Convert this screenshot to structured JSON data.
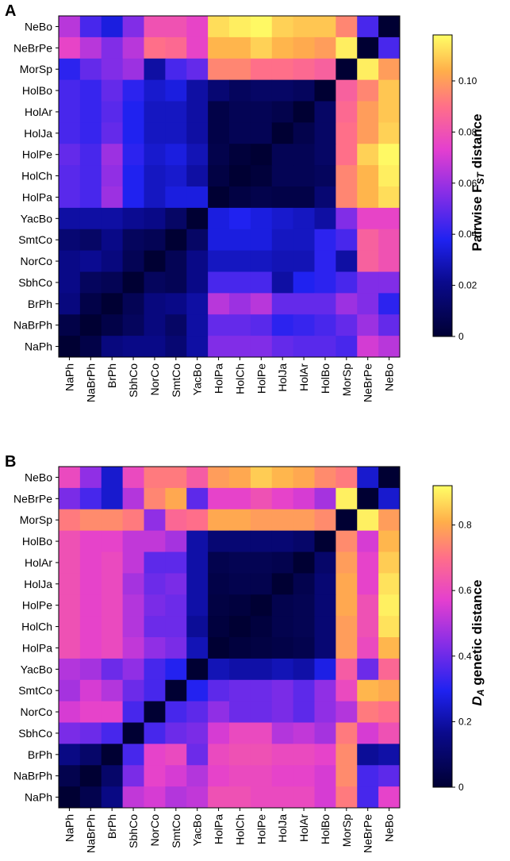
{
  "chart_data": [
    {
      "type": "heatmap",
      "panel": "A",
      "title": "",
      "colorbar_title": "Pairwise F",
      "colorbar_title_sub": "ST",
      "colorbar_title_suffix": " distance",
      "rows": [
        "NeBo",
        "NeBrPe",
        "MorSp",
        "HolBo",
        "HolAr",
        "HolJa",
        "HolPe",
        "HolCh",
        "HolPa",
        "YacBo",
        "SmtCo",
        "NorCo",
        "SbhCo",
        "BrPh",
        "NaBrPh",
        "NaPh"
      ],
      "columns": [
        "NaPh",
        "NaBrPh",
        "BrPh",
        "SbhCo",
        "NorCo",
        "SmtCo",
        "YacBo",
        "HolPa",
        "HolCh",
        "HolPe",
        "HolJa",
        "HolAr",
        "HolBo",
        "MorSp",
        "NeBrPe",
        "NeBo"
      ],
      "values": [
        [
          0.065,
          0.045,
          0.035,
          0.055,
          0.08,
          0.08,
          0.075,
          0.112,
          0.115,
          0.117,
          0.11,
          0.108,
          0.108,
          0.095,
          0.045,
          0.0
        ],
        [
          0.075,
          0.065,
          0.055,
          0.065,
          0.09,
          0.088,
          0.075,
          0.105,
          0.105,
          0.11,
          0.105,
          0.103,
          0.1,
          0.115,
          0.0,
          0.045
        ],
        [
          0.04,
          0.05,
          0.055,
          0.06,
          0.025,
          0.045,
          0.05,
          0.095,
          0.095,
          0.09,
          0.09,
          0.088,
          0.085,
          0.0,
          0.115,
          0.1
        ],
        [
          0.045,
          0.042,
          0.05,
          0.04,
          0.032,
          0.035,
          0.025,
          0.015,
          0.01,
          0.012,
          0.012,
          0.01,
          0.0,
          0.085,
          0.095,
          0.108
        ],
        [
          0.045,
          0.042,
          0.048,
          0.038,
          0.03,
          0.03,
          0.025,
          0.005,
          0.008,
          0.008,
          0.006,
          0.0,
          0.012,
          0.088,
          0.1,
          0.108
        ],
        [
          0.045,
          0.042,
          0.05,
          0.038,
          0.03,
          0.03,
          0.025,
          0.005,
          0.008,
          0.008,
          0.0,
          0.006,
          0.012,
          0.09,
          0.1,
          0.11
        ],
        [
          0.05,
          0.045,
          0.06,
          0.04,
          0.032,
          0.035,
          0.028,
          0.006,
          0.002,
          0.0,
          0.008,
          0.008,
          0.012,
          0.09,
          0.11,
          0.117
        ],
        [
          0.048,
          0.045,
          0.058,
          0.038,
          0.03,
          0.032,
          0.025,
          0.004,
          0.0,
          0.002,
          0.008,
          0.008,
          0.01,
          0.095,
          0.105,
          0.115
        ],
        [
          0.048,
          0.045,
          0.06,
          0.038,
          0.03,
          0.035,
          0.035,
          0.0,
          0.004,
          0.006,
          0.005,
          0.005,
          0.015,
          0.095,
          0.105,
          0.112
        ],
        [
          0.025,
          0.025,
          0.025,
          0.022,
          0.02,
          0.012,
          0.0,
          0.035,
          0.038,
          0.035,
          0.032,
          0.03,
          0.025,
          0.055,
          0.075,
          0.075
        ],
        [
          0.015,
          0.012,
          0.02,
          0.01,
          0.008,
          0.0,
          0.012,
          0.035,
          0.035,
          0.035,
          0.03,
          0.03,
          0.04,
          0.045,
          0.085,
          0.08
        ],
        [
          0.02,
          0.022,
          0.018,
          0.008,
          0.0,
          0.008,
          0.02,
          0.03,
          0.03,
          0.03,
          0.028,
          0.028,
          0.04,
          0.025,
          0.085,
          0.08
        ],
        [
          0.02,
          0.01,
          0.008,
          0.0,
          0.01,
          0.008,
          0.02,
          0.045,
          0.045,
          0.045,
          0.025,
          0.038,
          0.04,
          0.045,
          0.055,
          0.055
        ],
        [
          0.018,
          0.005,
          0.0,
          0.008,
          0.018,
          0.02,
          0.025,
          0.065,
          0.06,
          0.065,
          0.05,
          0.05,
          0.05,
          0.06,
          0.055,
          0.04
        ],
        [
          0.005,
          0.0,
          0.005,
          0.01,
          0.018,
          0.012,
          0.025,
          0.05,
          0.05,
          0.048,
          0.04,
          0.042,
          0.045,
          0.05,
          0.06,
          0.05
        ],
        [
          0.0,
          0.005,
          0.018,
          0.02,
          0.02,
          0.015,
          0.025,
          0.055,
          0.055,
          0.055,
          0.05,
          0.048,
          0.048,
          0.045,
          0.07,
          0.065
        ]
      ],
      "colorbar_ticks": [
        "0",
        "0.02",
        "0.04",
        "0.06",
        "0.08",
        "0.10"
      ],
      "colorbar_tick_values": [
        0,
        0.02,
        0.04,
        0.06,
        0.08,
        0.1
      ],
      "color_range": [
        0,
        0.118
      ]
    },
    {
      "type": "heatmap",
      "panel": "B",
      "title": "",
      "colorbar_title": "D",
      "colorbar_title_sub": "A",
      "colorbar_title_suffix": " genetic distance",
      "rows": [
        "NeBo",
        "NeBrPe",
        "MorSp",
        "HolBo",
        "HolAr",
        "HolJa",
        "HolPe",
        "HolCh",
        "HolPa",
        "YacBo",
        "SmtCo",
        "NorCo",
        "SbhCo",
        "BrPh",
        "NaBrPh",
        "NaPh"
      ],
      "columns": [
        "NaPh",
        "NaBrPh",
        "BrPh",
        "SbhCo",
        "NorCo",
        "SmtCo",
        "YacBo",
        "HolPa",
        "HolCh",
        "HolPe",
        "HolJa",
        "HolAr",
        "HolBo",
        "MorSp",
        "NeBrPe",
        "NeBo"
      ],
      "values": [
        [
          0.6,
          0.45,
          0.25,
          0.6,
          0.72,
          0.72,
          0.65,
          0.78,
          0.8,
          0.85,
          0.82,
          0.8,
          0.75,
          0.72,
          0.25,
          0.0
        ],
        [
          0.42,
          0.35,
          0.25,
          0.5,
          0.74,
          0.8,
          0.38,
          0.58,
          0.58,
          0.62,
          0.58,
          0.55,
          0.48,
          0.9,
          0.0,
          0.25
        ],
        [
          0.72,
          0.75,
          0.75,
          0.72,
          0.45,
          0.68,
          0.7,
          0.8,
          0.8,
          0.78,
          0.78,
          0.78,
          0.75,
          0.0,
          0.9,
          0.78
        ],
        [
          0.62,
          0.58,
          0.58,
          0.52,
          0.52,
          0.48,
          0.2,
          0.12,
          0.12,
          0.12,
          0.12,
          0.1,
          0.0,
          0.75,
          0.55,
          0.82
        ],
        [
          0.62,
          0.58,
          0.6,
          0.52,
          0.38,
          0.38,
          0.2,
          0.05,
          0.06,
          0.06,
          0.05,
          0.0,
          0.1,
          0.78,
          0.58,
          0.85
        ],
        [
          0.62,
          0.58,
          0.6,
          0.48,
          0.4,
          0.42,
          0.2,
          0.04,
          0.05,
          0.05,
          0.0,
          0.05,
          0.12,
          0.8,
          0.58,
          0.88
        ],
        [
          0.62,
          0.58,
          0.6,
          0.5,
          0.42,
          0.4,
          0.2,
          0.03,
          0.02,
          0.0,
          0.05,
          0.06,
          0.12,
          0.8,
          0.62,
          0.9
        ],
        [
          0.62,
          0.58,
          0.6,
          0.5,
          0.4,
          0.4,
          0.18,
          0.02,
          0.0,
          0.02,
          0.05,
          0.06,
          0.12,
          0.78,
          0.62,
          0.88
        ],
        [
          0.62,
          0.58,
          0.6,
          0.52,
          0.45,
          0.42,
          0.22,
          0.0,
          0.02,
          0.03,
          0.04,
          0.05,
          0.12,
          0.78,
          0.6,
          0.82
        ],
        [
          0.5,
          0.48,
          0.4,
          0.45,
          0.35,
          0.3,
          0.0,
          0.22,
          0.2,
          0.2,
          0.22,
          0.2,
          0.28,
          0.65,
          0.4,
          0.68
        ],
        [
          0.48,
          0.55,
          0.5,
          0.4,
          0.35,
          0.0,
          0.3,
          0.38,
          0.4,
          0.4,
          0.42,
          0.38,
          0.45,
          0.6,
          0.82,
          0.8
        ],
        [
          0.55,
          0.58,
          0.58,
          0.35,
          0.0,
          0.35,
          0.38,
          0.45,
          0.4,
          0.4,
          0.42,
          0.38,
          0.45,
          0.5,
          0.72,
          0.7
        ],
        [
          0.42,
          0.4,
          0.35,
          0.0,
          0.35,
          0.4,
          0.42,
          0.55,
          0.6,
          0.6,
          0.5,
          0.52,
          0.48,
          0.72,
          0.55,
          0.62
        ],
        [
          0.15,
          0.1,
          0.0,
          0.35,
          0.58,
          0.6,
          0.4,
          0.6,
          0.62,
          0.62,
          0.6,
          0.6,
          0.58,
          0.75,
          0.18,
          0.2
        ],
        [
          0.05,
          0.0,
          0.1,
          0.42,
          0.58,
          0.55,
          0.5,
          0.58,
          0.6,
          0.6,
          0.58,
          0.58,
          0.55,
          0.75,
          0.35,
          0.38
        ],
        [
          0.0,
          0.05,
          0.15,
          0.52,
          0.55,
          0.5,
          0.52,
          0.62,
          0.62,
          0.6,
          0.6,
          0.6,
          0.55,
          0.72,
          0.35,
          0.58
        ]
      ],
      "colorbar_ticks": [
        "0",
        "0.2",
        "0.4",
        "0.6",
        "0.8"
      ],
      "colorbar_tick_values": [
        0,
        0.2,
        0.4,
        0.6,
        0.8
      ],
      "color_range": [
        0,
        0.92
      ]
    }
  ]
}
